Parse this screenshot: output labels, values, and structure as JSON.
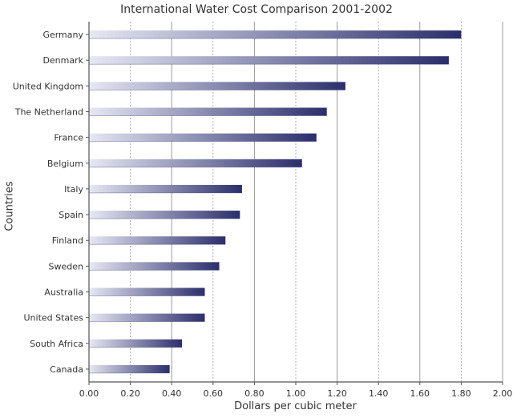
{
  "chart_data": {
    "type": "bar",
    "orientation": "horizontal",
    "title": "International Water Cost Comparison 2001-2002",
    "xlabel": "Dollars per cubic meter",
    "ylabel": "Countries",
    "categories": [
      "Germany",
      "Denmark",
      "United Kingdom",
      "The Netherland",
      "France",
      "Belgium",
      "Italy",
      "Spain",
      "Finland",
      "Sweden",
      "Australia",
      "United States",
      "South Africa",
      "Canada"
    ],
    "values": [
      1.8,
      1.74,
      1.24,
      1.15,
      1.1,
      1.03,
      0.74,
      0.73,
      0.66,
      0.63,
      0.56,
      0.56,
      0.45,
      0.39
    ],
    "xlim": [
      0,
      2.0
    ],
    "xticks": [
      "0.00",
      "0.20",
      "0.40",
      "0.60",
      "0.80",
      "1.00",
      "1.20",
      "1.40",
      "1.60",
      "1.80",
      "2.00"
    ],
    "grid": true,
    "legend": "none",
    "colors": {
      "bar_dark": "#2b2e6b",
      "bar_light": "#e6e8f4",
      "grid": "#9a9a9a",
      "axis": "#555555"
    }
  }
}
